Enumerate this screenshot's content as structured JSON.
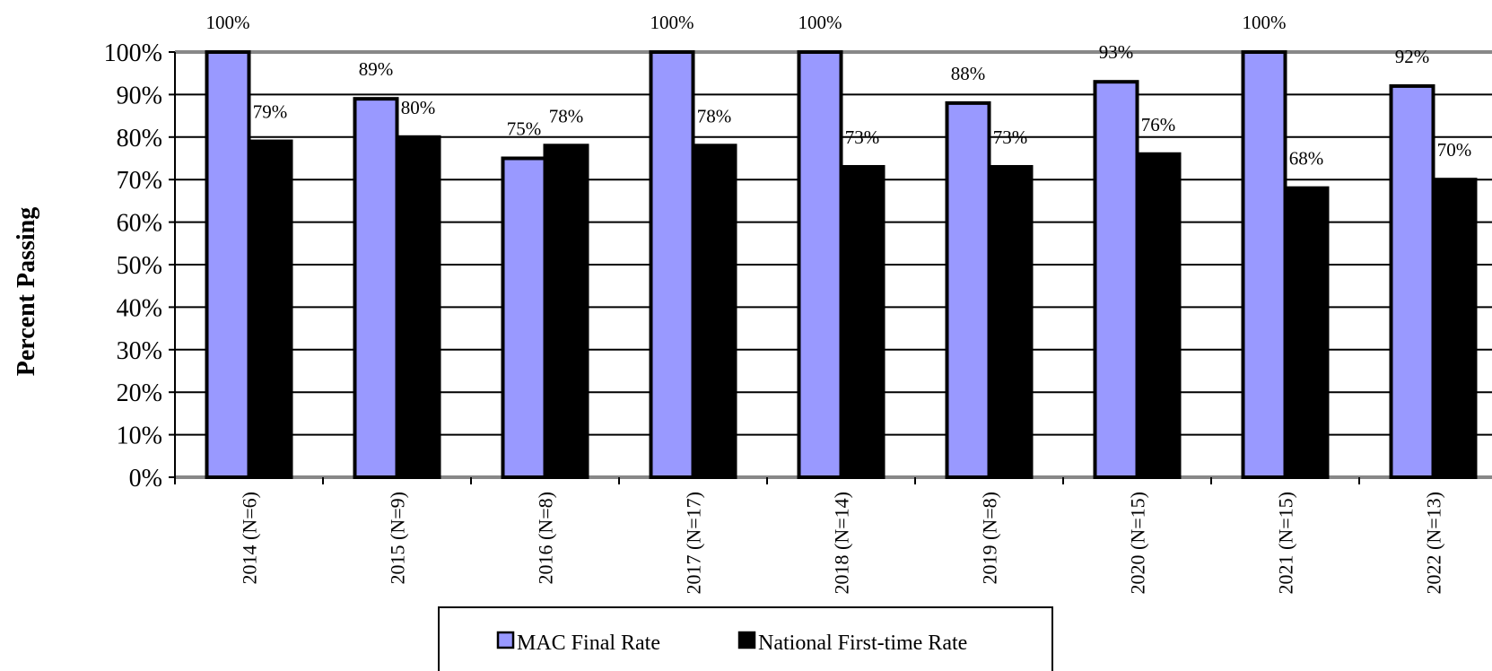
{
  "chart_data": {
    "type": "bar",
    "title": "",
    "xlabel": "",
    "ylabel": "Percent Passing",
    "ylim": [
      0,
      100
    ],
    "y_ticks": [
      "0%",
      "10%",
      "20%",
      "30%",
      "40%",
      "50%",
      "60%",
      "70%",
      "80%",
      "90%",
      "100%"
    ],
    "grid": true,
    "legend_placement": "bottom",
    "categories": [
      "2014 (N=6)",
      "2015 (N=9)",
      "2016 (N=8)",
      "2017 (N=17)",
      "2018 (N=14)",
      "2019 (N=8)",
      "2020 (N=15)",
      "2021 (N=15)",
      "2022 (N=13)"
    ],
    "series": [
      {
        "name": "MAC Final Rate",
        "color": "#9999FF",
        "values": [
          100,
          89,
          75,
          100,
          100,
          88,
          93,
          100,
          92
        ],
        "labels": [
          "100%",
          "89%",
          "75%",
          "100%",
          "100%",
          "88%",
          "93%",
          "100%",
          "92%"
        ]
      },
      {
        "name": "National First-time Rate",
        "color": "#000000",
        "values": [
          79,
          80,
          78,
          78,
          73,
          73,
          76,
          68,
          70
        ],
        "labels": [
          "79%",
          "80%",
          "78%",
          "78%",
          "73%",
          "73%",
          "76%",
          "68%",
          "70%"
        ]
      }
    ]
  }
}
